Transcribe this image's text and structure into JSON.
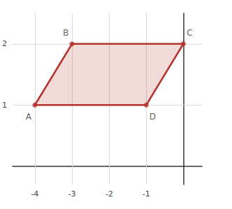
{
  "chart_data": {
    "type": "polygon",
    "points": [
      {
        "label": "A",
        "x": -4,
        "y": 1
      },
      {
        "label": "B",
        "x": -3,
        "y": 2
      },
      {
        "label": "C",
        "x": 0,
        "y": 2
      },
      {
        "label": "D",
        "x": -1,
        "y": 1
      }
    ],
    "color": "#b5312c",
    "xlim": [
      -4.6,
      0.5
    ],
    "ylim": [
      -0.3,
      2.5
    ],
    "xticks": [
      -4,
      -3,
      -2,
      -1
    ],
    "yticks": [
      1,
      2
    ],
    "grid": true
  }
}
